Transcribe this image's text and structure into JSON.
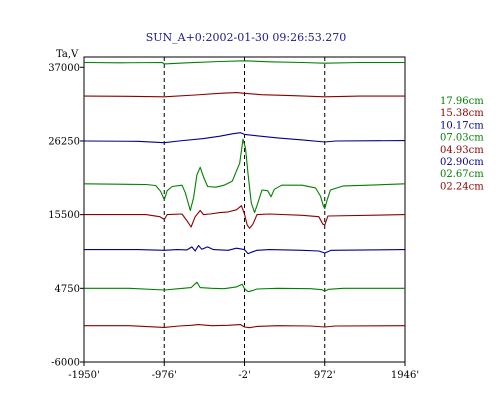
{
  "chart_data": {
    "type": "line",
    "title": "SUN_A+0:2002-01-30 09:26:53.270",
    "ylabel": "Ta,V",
    "xlabel": "",
    "xlim": [
      -1950,
      1946
    ],
    "ylim": [
      -6000,
      38500
    ],
    "x_ticks": [
      {
        "value": -1950,
        "label": "-1950'"
      },
      {
        "value": -976,
        "label": "-976'"
      },
      {
        "value": -2,
        "label": "-2'"
      },
      {
        "value": 972,
        "label": "972'"
      },
      {
        "value": 1946,
        "label": "1946'"
      }
    ],
    "y_ticks": [
      {
        "value": 37000,
        "label": "37000"
      },
      {
        "value": 26250,
        "label": "26250"
      },
      {
        "value": 15500,
        "label": "15500"
      },
      {
        "value": 4750,
        "label": "4750"
      },
      {
        "value": -6000,
        "label": "-6000"
      }
    ],
    "dashed_verticals": [
      -976,
      -2,
      972
    ],
    "grid": false,
    "legend_position": "right",
    "series": [
      {
        "name": "17.96cm",
        "color": "#008000",
        "baseline": 37700,
        "points": [
          [
            -1950,
            37700
          ],
          [
            -1500,
            37650
          ],
          [
            -1000,
            37700
          ],
          [
            -976,
            37500
          ],
          [
            -700,
            37650
          ],
          [
            -300,
            37850
          ],
          [
            -2,
            37950
          ],
          [
            300,
            37800
          ],
          [
            700,
            37700
          ],
          [
            972,
            37600
          ],
          [
            1400,
            37700
          ],
          [
            1946,
            37700
          ]
        ]
      },
      {
        "name": "15.38cm",
        "color": "#8b0000",
        "baseline": 32800,
        "points": [
          [
            -1950,
            32800
          ],
          [
            -1300,
            32750
          ],
          [
            -976,
            32700
          ],
          [
            -600,
            32950
          ],
          [
            -300,
            33200
          ],
          [
            -100,
            33300
          ],
          [
            -2,
            33200
          ],
          [
            200,
            33000
          ],
          [
            600,
            32850
          ],
          [
            972,
            32700
          ],
          [
            1400,
            32800
          ],
          [
            1946,
            32800
          ]
        ]
      },
      {
        "name": "10.17cm",
        "color": "#00008b",
        "baseline": 26250,
        "points": [
          [
            -1950,
            26250
          ],
          [
            -1300,
            26200
          ],
          [
            -976,
            26000
          ],
          [
            -800,
            26250
          ],
          [
            -500,
            26600
          ],
          [
            -300,
            26950
          ],
          [
            -150,
            27300
          ],
          [
            -50,
            27450
          ],
          [
            -2,
            27200
          ],
          [
            150,
            27000
          ],
          [
            400,
            26700
          ],
          [
            700,
            26400
          ],
          [
            972,
            26100
          ],
          [
            1100,
            26250
          ],
          [
            1946,
            26300
          ]
        ]
      },
      {
        "name": "07.03cm",
        "color": "#008000",
        "baseline": 20000,
        "points": [
          [
            -1950,
            20000
          ],
          [
            -1200,
            19900
          ],
          [
            -1080,
            19750
          ],
          [
            -1020,
            18900
          ],
          [
            -976,
            17700
          ],
          [
            -940,
            19000
          ],
          [
            -880,
            19600
          ],
          [
            -760,
            19800
          ],
          [
            -720,
            18700
          ],
          [
            -660,
            16100
          ],
          [
            -620,
            18000
          ],
          [
            -580,
            21300
          ],
          [
            -540,
            22400
          ],
          [
            -500,
            21000
          ],
          [
            -450,
            19600
          ],
          [
            -350,
            19500
          ],
          [
            -250,
            19800
          ],
          [
            -150,
            20400
          ],
          [
            -60,
            23000
          ],
          [
            -20,
            26500
          ],
          [
            10,
            25200
          ],
          [
            40,
            21500
          ],
          [
            80,
            17200
          ],
          [
            120,
            15800
          ],
          [
            160,
            17200
          ],
          [
            210,
            19100
          ],
          [
            280,
            19000
          ],
          [
            320,
            18100
          ],
          [
            360,
            19200
          ],
          [
            450,
            19800
          ],
          [
            700,
            19800
          ],
          [
            860,
            19400
          ],
          [
            920,
            18200
          ],
          [
            955,
            16800
          ],
          [
            972,
            16400
          ],
          [
            1000,
            17600
          ],
          [
            1040,
            19100
          ],
          [
            1200,
            19700
          ],
          [
            1500,
            19800
          ],
          [
            1946,
            20000
          ]
        ]
      },
      {
        "name": "04.93cm",
        "color": "#8b0000",
        "baseline": 15500,
        "points": [
          [
            -1950,
            15500
          ],
          [
            -1200,
            15500
          ],
          [
            -1030,
            15200
          ],
          [
            -976,
            14800
          ],
          [
            -940,
            15500
          ],
          [
            -760,
            15600
          ],
          [
            -700,
            14600
          ],
          [
            -650,
            13700
          ],
          [
            -600,
            15200
          ],
          [
            -540,
            16100
          ],
          [
            -500,
            15500
          ],
          [
            -420,
            15600
          ],
          [
            -300,
            15800
          ],
          [
            -200,
            15900
          ],
          [
            -100,
            16200
          ],
          [
            -40,
            16800
          ],
          [
            -2,
            15600
          ],
          [
            30,
            14000
          ],
          [
            60,
            13500
          ],
          [
            100,
            14100
          ],
          [
            150,
            15500
          ],
          [
            300,
            15600
          ],
          [
            700,
            15400
          ],
          [
            900,
            15200
          ],
          [
            950,
            14100
          ],
          [
            972,
            14000
          ],
          [
            1010,
            15300
          ],
          [
            1946,
            15500
          ]
        ]
      },
      {
        "name": "02.90cm",
        "color": "#00008b",
        "baseline": 10400,
        "points": [
          [
            -1950,
            10400
          ],
          [
            -1300,
            10400
          ],
          [
            -976,
            10300
          ],
          [
            -820,
            10400
          ],
          [
            -700,
            10350
          ],
          [
            -640,
            10800
          ],
          [
            -600,
            10200
          ],
          [
            -560,
            11000
          ],
          [
            -520,
            10450
          ],
          [
            -450,
            10800
          ],
          [
            -380,
            10400
          ],
          [
            -200,
            10300
          ],
          [
            -100,
            10600
          ],
          [
            -2,
            10400
          ],
          [
            40,
            9800
          ],
          [
            80,
            10000
          ],
          [
            150,
            10300
          ],
          [
            300,
            10400
          ],
          [
            700,
            10300
          ],
          [
            900,
            10200
          ],
          [
            972,
            9900
          ],
          [
            1050,
            10300
          ],
          [
            1946,
            10400
          ]
        ]
      },
      {
        "name": "02.67cm",
        "color": "#008000",
        "baseline": 4750,
        "points": [
          [
            -1950,
            4750
          ],
          [
            -1400,
            4750
          ],
          [
            -976,
            4500
          ],
          [
            -800,
            4700
          ],
          [
            -650,
            4850
          ],
          [
            -580,
            5650
          ],
          [
            -540,
            4850
          ],
          [
            -400,
            4750
          ],
          [
            -250,
            4700
          ],
          [
            -100,
            4950
          ],
          [
            -30,
            5350
          ],
          [
            -2,
            4700
          ],
          [
            40,
            4250
          ],
          [
            90,
            4400
          ],
          [
            150,
            4650
          ],
          [
            400,
            4750
          ],
          [
            800,
            4700
          ],
          [
            940,
            4550
          ],
          [
            972,
            4350
          ],
          [
            1020,
            4600
          ],
          [
            1200,
            4750
          ],
          [
            1946,
            4750
          ]
        ]
      },
      {
        "name": "02.24cm",
        "color": "#8b0000",
        "baseline": -700,
        "points": [
          [
            -1950,
            -700
          ],
          [
            -1400,
            -700
          ],
          [
            -976,
            -950
          ],
          [
            -800,
            -750
          ],
          [
            -650,
            -650
          ],
          [
            -560,
            -550
          ],
          [
            -400,
            -700
          ],
          [
            -200,
            -650
          ],
          [
            -50,
            -550
          ],
          [
            -2,
            -900
          ],
          [
            60,
            -1000
          ],
          [
            150,
            -800
          ],
          [
            400,
            -700
          ],
          [
            800,
            -750
          ],
          [
            972,
            -900
          ],
          [
            1100,
            -750
          ],
          [
            1946,
            -700
          ]
        ]
      }
    ]
  }
}
